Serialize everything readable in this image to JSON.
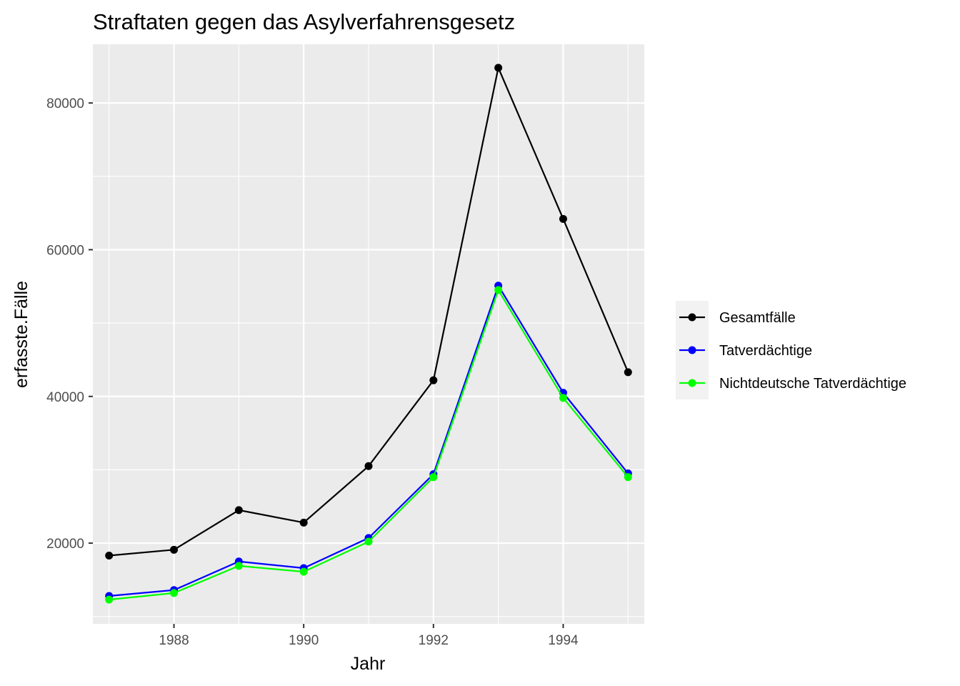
{
  "chart_data": {
    "type": "line",
    "title": "Straftaten gegen das Asylverfahrensgesetz",
    "xlabel": "Jahr",
    "ylabel": "erfasste.Fälle",
    "x": [
      1987,
      1988,
      1989,
      1990,
      1991,
      1992,
      1993,
      1994,
      1995
    ],
    "xlim": [
      1986.75,
      1995.25
    ],
    "ylim": [
      9000,
      88000
    ],
    "x_ticks": [
      1988,
      1990,
      1992,
      1994
    ],
    "x_tick_labels": [
      "1988",
      "1990",
      "1992",
      "1994"
    ],
    "y_ticks": [
      20000,
      40000,
      60000,
      80000
    ],
    "y_tick_labels": [
      "20000",
      "40000",
      "60000",
      "80000"
    ],
    "grid": true,
    "legend_position": "right",
    "series": [
      {
        "name": "Gesamtfälle",
        "color": "#000000",
        "values": [
          18300,
          19100,
          24500,
          22800,
          30500,
          42200,
          84800,
          64200,
          43300
        ]
      },
      {
        "name": "Tatverdächtige",
        "color": "#0000ff",
        "values": [
          12800,
          13600,
          17500,
          16600,
          20700,
          29400,
          55100,
          40500,
          29500
        ]
      },
      {
        "name": "Nichtdeutsche Tatverdächtige",
        "color": "#00ff00",
        "values": [
          12300,
          13200,
          16900,
          16100,
          20200,
          29000,
          54500,
          39800,
          29000
        ]
      }
    ]
  }
}
